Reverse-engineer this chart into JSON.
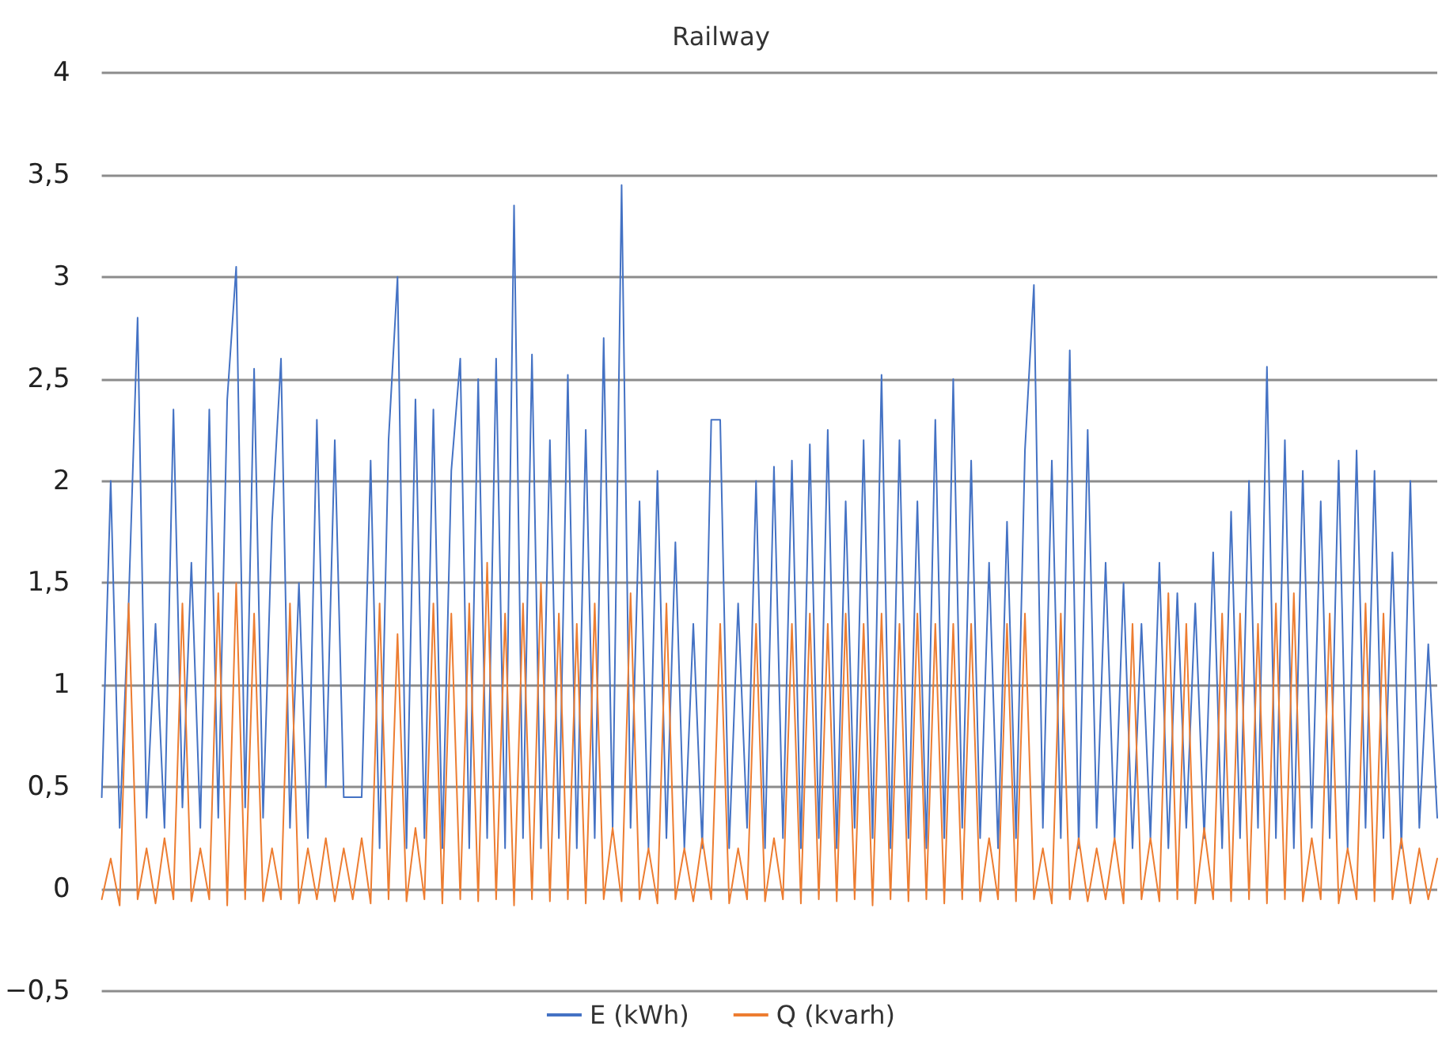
{
  "chart_data": {
    "type": "line",
    "title": "Railway",
    "categories": [
      null,
      null,
      null,
      null,
      null,
      null,
      null,
      null,
      null,
      null,
      null,
      null,
      null,
      null,
      null,
      null,
      null,
      null,
      null,
      null,
      null,
      null,
      null,
      null,
      null,
      null,
      null,
      null,
      null,
      null,
      null,
      null,
      null,
      null,
      null,
      null,
      null,
      null,
      null,
      null,
      null,
      null,
      null,
      null,
      null,
      null,
      null,
      null,
      null,
      null,
      null,
      null,
      null,
      null,
      null,
      null,
      null,
      null,
      null,
      null,
      null,
      null,
      null,
      null,
      null,
      null,
      null,
      null,
      null,
      null,
      null,
      null,
      null,
      null,
      null,
      null,
      null,
      null,
      null,
      null,
      null,
      null,
      null,
      null,
      null,
      null,
      null,
      null,
      null,
      null,
      null,
      null,
      null,
      null,
      null,
      null,
      null,
      null,
      null,
      null,
      null,
      null,
      null,
      null,
      null,
      null,
      null,
      null,
      null,
      null,
      null,
      null,
      null,
      null,
      null,
      null,
      null,
      null,
      null,
      null,
      null,
      null,
      null,
      null,
      null,
      null,
      null,
      null,
      null,
      null,
      null,
      null,
      null,
      null,
      null,
      null,
      null,
      null,
      null,
      null,
      null,
      null,
      null,
      null,
      null,
      null,
      null,
      null,
      null,
      null
    ],
    "series": [
      {
        "name": "E (kWh)",
        "color": "#4472c4",
        "values": [
          0.45,
          2.0,
          0.3,
          1.4,
          2.8,
          0.35,
          1.3,
          0.3,
          2.35,
          0.4,
          1.6,
          0.3,
          2.35,
          0.35,
          2.4,
          3.05,
          0.4,
          2.55,
          0.35,
          1.8,
          2.6,
          0.3,
          1.5,
          0.25,
          2.3,
          0.5,
          2.2,
          0.45,
          0.45,
          0.45,
          2.1,
          0.2,
          2.2,
          3.0,
          0.2,
          2.4,
          0.25,
          2.35,
          0.2,
          2.05,
          2.6,
          0.2,
          2.5,
          0.25,
          2.6,
          0.2,
          3.35,
          0.25,
          2.62,
          0.2,
          2.2,
          0.25,
          2.52,
          0.2,
          2.25,
          0.25,
          2.7,
          0.3,
          3.45,
          0.3,
          1.9,
          0.2,
          2.05,
          0.25,
          1.7,
          0.2,
          1.3,
          0.2,
          2.3,
          2.3,
          0.2,
          1.4,
          0.3,
          2.0,
          0.2,
          2.07,
          0.25,
          2.1,
          0.2,
          2.18,
          0.25,
          2.25,
          0.2,
          1.9,
          0.3,
          2.2,
          0.25,
          2.52,
          0.2,
          2.2,
          0.25,
          1.9,
          0.2,
          2.3,
          0.25,
          2.5,
          0.3,
          2.1,
          0.25,
          1.6,
          0.2,
          1.8,
          0.25,
          2.15,
          2.96,
          0.3,
          2.1,
          0.25,
          2.64,
          0.2,
          2.25,
          0.3,
          1.6,
          0.25,
          1.5,
          0.2,
          1.3,
          0.25,
          1.6,
          0.2,
          1.45,
          0.3,
          1.4,
          0.25,
          1.65,
          0.2,
          1.85,
          0.25,
          2.0,
          0.3,
          2.56,
          0.25,
          2.2,
          0.2,
          2.05,
          0.3,
          1.9,
          0.25,
          2.1,
          0.2,
          2.15,
          0.3,
          2.05,
          0.25,
          1.65,
          0.2,
          2.0,
          0.3,
          1.2,
          0.35
        ]
      },
      {
        "name": "Q (kvarh)",
        "color": "#ed7d31",
        "values": [
          -0.05,
          0.15,
          -0.08,
          1.4,
          -0.05,
          0.2,
          -0.07,
          0.25,
          -0.05,
          1.4,
          -0.06,
          0.2,
          -0.05,
          1.45,
          -0.08,
          1.5,
          -0.05,
          1.35,
          -0.06,
          0.2,
          -0.05,
          1.4,
          -0.07,
          0.2,
          -0.05,
          0.25,
          -0.06,
          0.2,
          -0.05,
          0.25,
          -0.07,
          1.4,
          -0.05,
          1.25,
          -0.06,
          0.3,
          -0.05,
          1.4,
          -0.07,
          1.35,
          -0.05,
          1.4,
          -0.06,
          1.6,
          -0.05,
          1.35,
          -0.08,
          1.4,
          -0.05,
          1.5,
          -0.06,
          1.35,
          -0.05,
          1.3,
          -0.07,
          1.4,
          -0.05,
          0.3,
          -0.06,
          1.45,
          -0.05,
          0.2,
          -0.07,
          1.4,
          -0.05,
          0.2,
          -0.06,
          0.25,
          -0.05,
          1.3,
          -0.07,
          0.2,
          -0.05,
          1.3,
          -0.06,
          0.25,
          -0.05,
          1.3,
          -0.07,
          1.35,
          -0.05,
          1.3,
          -0.06,
          1.35,
          -0.05,
          1.3,
          -0.08,
          1.35,
          -0.05,
          1.3,
          -0.06,
          1.35,
          -0.05,
          1.3,
          -0.07,
          1.3,
          -0.05,
          1.3,
          -0.06,
          0.25,
          -0.05,
          1.3,
          -0.06,
          1.35,
          -0.05,
          0.2,
          -0.07,
          1.35,
          -0.05,
          0.25,
          -0.06,
          0.2,
          -0.05,
          0.25,
          -0.07,
          1.3,
          -0.05,
          0.25,
          -0.06,
          1.45,
          -0.05,
          1.3,
          -0.07,
          0.3,
          -0.05,
          1.35,
          -0.06,
          1.35,
          -0.05,
          1.3,
          -0.07,
          1.4,
          -0.05,
          1.45,
          -0.06,
          0.25,
          -0.05,
          1.35,
          -0.07,
          0.2,
          -0.05,
          1.4,
          -0.06,
          1.35,
          -0.05,
          0.25,
          -0.07,
          0.2,
          -0.05,
          0.15
        ]
      }
    ],
    "ylim": [
      -0.5,
      4
    ],
    "yticks": [
      {
        "value": -0.5,
        "label": "−0,5"
      },
      0,
      {
        "value": 0.5,
        "label": "0,5"
      },
      1,
      {
        "value": 1.5,
        "label": "1,5"
      },
      2,
      {
        "value": 2.5,
        "label": "2,5"
      },
      3,
      {
        "value": 3.5,
        "label": "3,5"
      },
      4
    ],
    "grid": "y",
    "legend": "bottom",
    "marker": "none",
    "line_style": "solid"
  }
}
